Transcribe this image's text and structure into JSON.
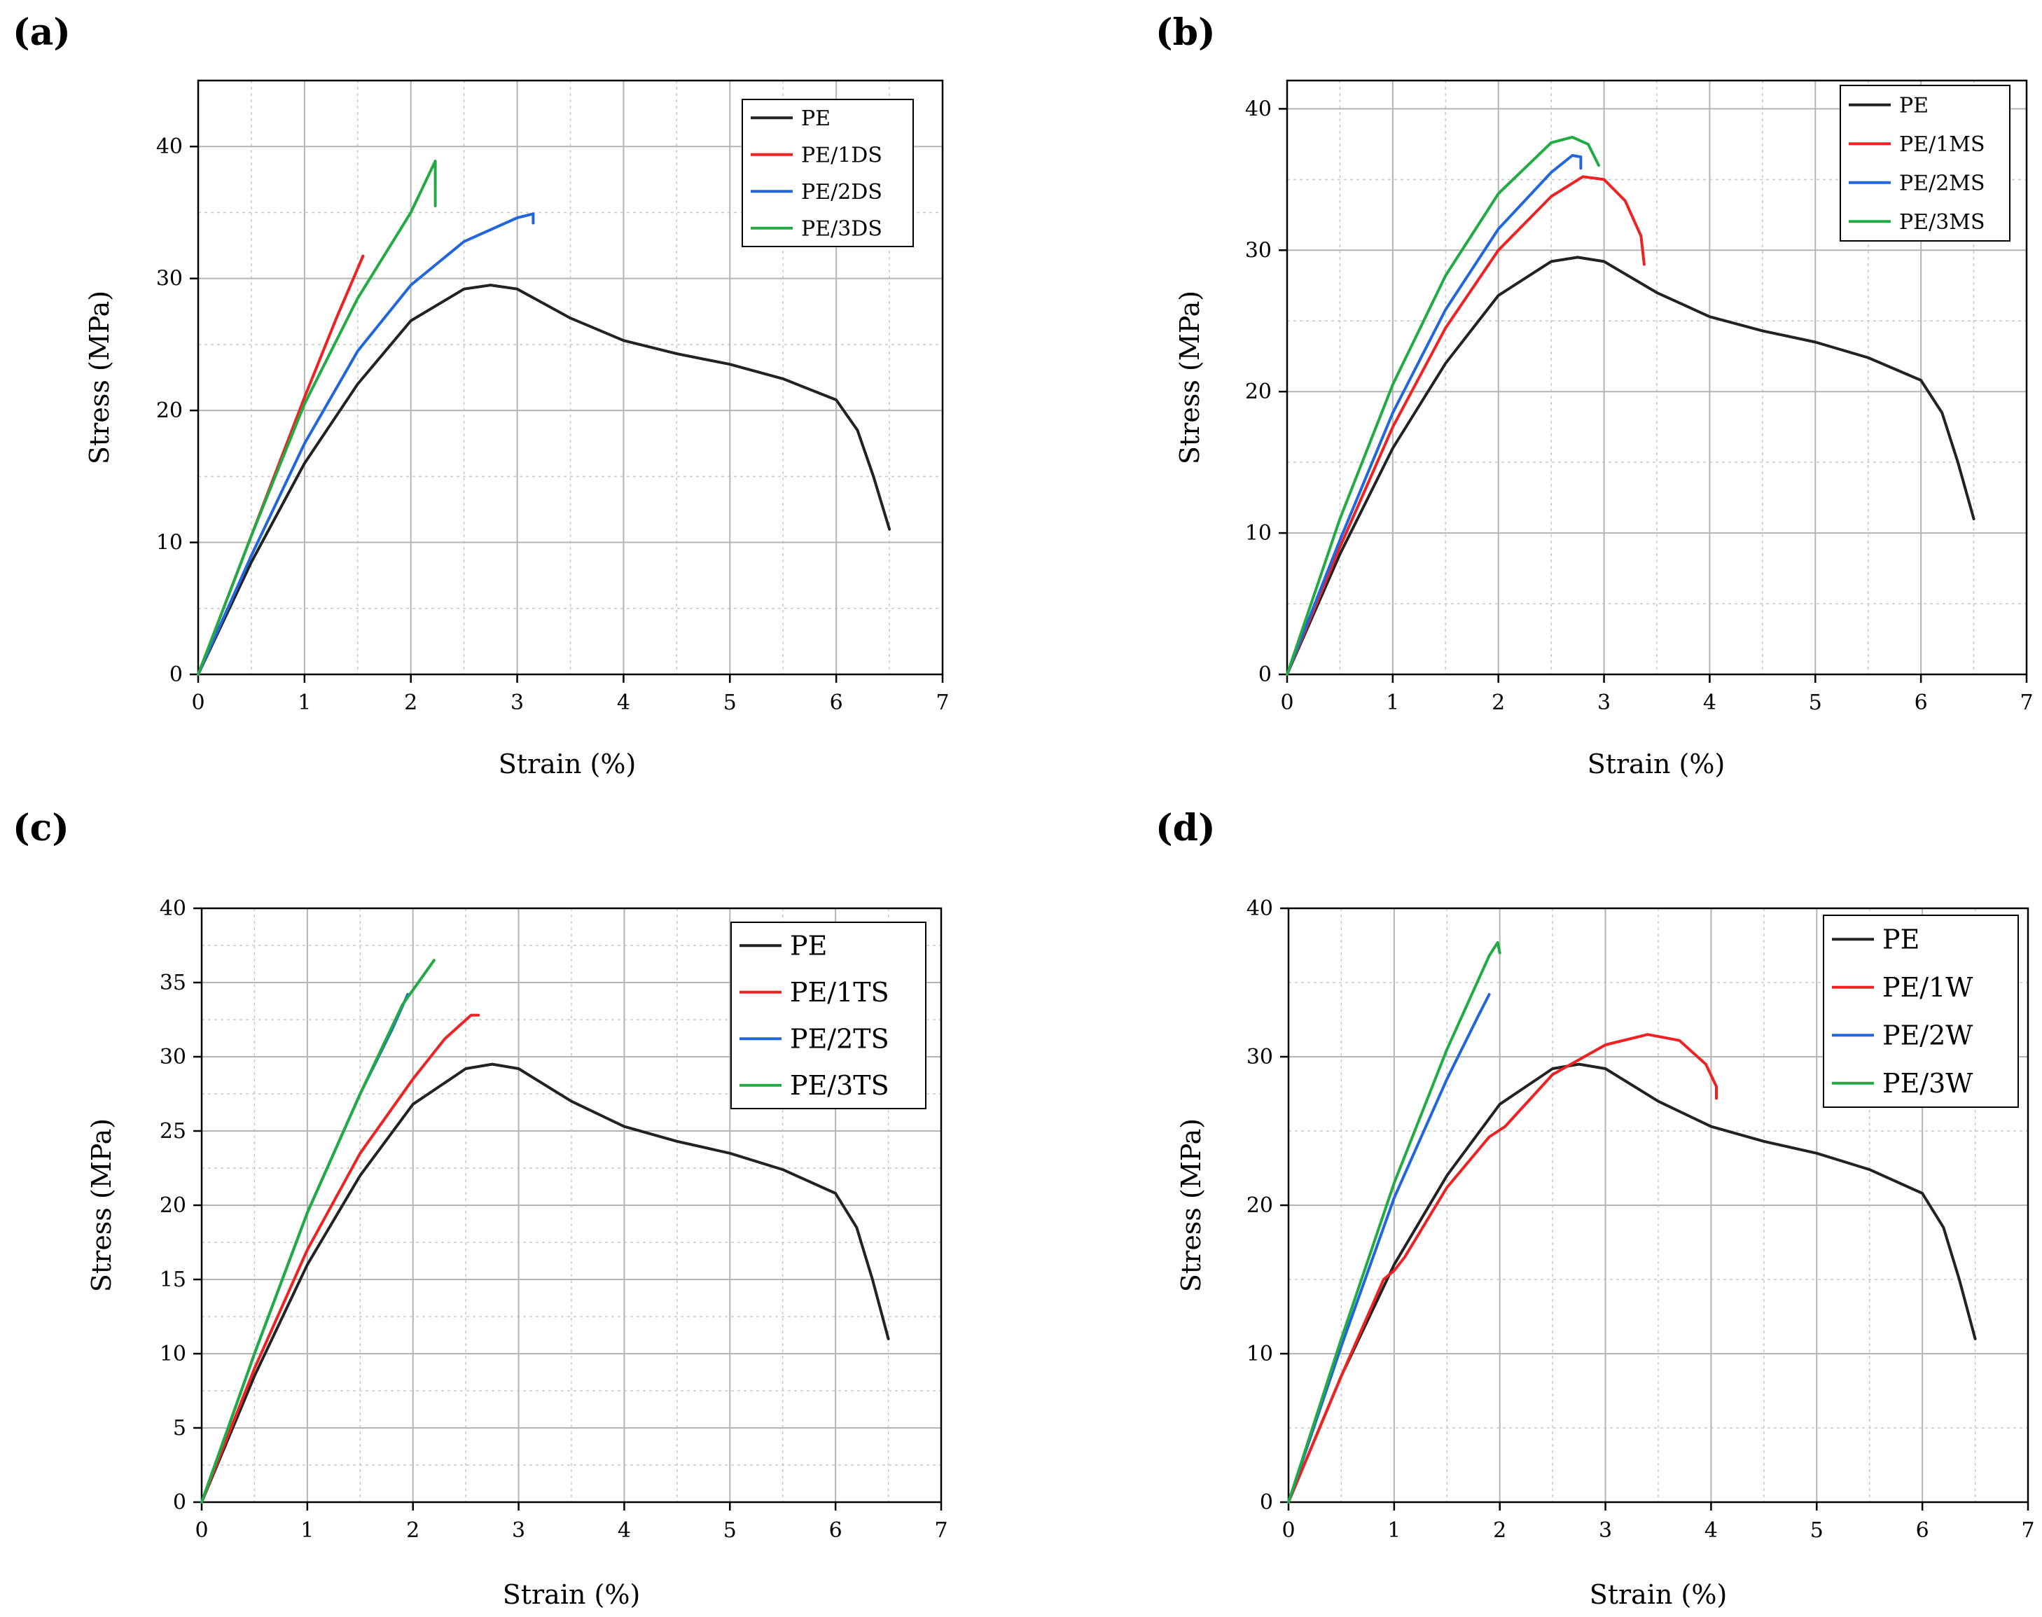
{
  "figure": {
    "panel_labels": [
      "(a)",
      "(b)",
      "(c)",
      "(d)"
    ]
  },
  "chart_data": [
    {
      "type": "line",
      "panel": "(a)",
      "xlabel": "Strain (%)",
      "ylabel": "Stress (MPa)",
      "xlim": [
        0,
        7
      ],
      "ylim": [
        0,
        45
      ],
      "xticks": [
        0,
        1,
        2,
        3,
        4,
        5,
        6,
        7
      ],
      "yticks": [
        0,
        10,
        20,
        30,
        40
      ],
      "grid": true,
      "legend": "top-right",
      "series": [
        {
          "name": "PE",
          "color": "#222222",
          "x": [
            0,
            0.5,
            1.0,
            1.5,
            2.0,
            2.5,
            2.75,
            3.0,
            3.5,
            4.0,
            4.5,
            5.0,
            5.5,
            6.0,
            6.2,
            6.35,
            6.5
          ],
          "y": [
            0,
            8.5,
            16,
            22,
            26.8,
            29.2,
            29.5,
            29.2,
            27,
            25.3,
            24.3,
            23.5,
            22.4,
            20.8,
            18.5,
            15,
            11
          ]
        },
        {
          "name": "PE/1DS",
          "color": "#ee2222",
          "x": [
            0,
            0.5,
            1.0,
            1.3,
            1.55
          ],
          "y": [
            0,
            10.5,
            21,
            27,
            31.7
          ]
        },
        {
          "name": "PE/2DS",
          "color": "#2266dd",
          "x": [
            0,
            0.5,
            1.0,
            1.5,
            2.0,
            2.5,
            3.0,
            3.15,
            3.15
          ],
          "y": [
            0,
            9,
            17.5,
            24.5,
            29.5,
            32.8,
            34.6,
            34.9,
            34.2
          ]
        },
        {
          "name": "PE/3DS",
          "color": "#22aa44",
          "x": [
            0,
            0.5,
            1.0,
            1.5,
            2.0,
            2.23,
            2.23
          ],
          "y": [
            0,
            10.5,
            20.5,
            28.5,
            35,
            38.9,
            35.5
          ]
        }
      ]
    },
    {
      "type": "line",
      "panel": "(b)",
      "xlabel": "Strain (%)",
      "ylabel": "Stress (MPa)",
      "xlim": [
        0,
        7
      ],
      "ylim": [
        0,
        42
      ],
      "xticks": [
        0,
        1,
        2,
        3,
        4,
        5,
        6,
        7
      ],
      "yticks": [
        0,
        10,
        20,
        30,
        40
      ],
      "grid": true,
      "legend": "top-right",
      "series": [
        {
          "name": "PE",
          "color": "#222222",
          "x": [
            0,
            0.5,
            1.0,
            1.5,
            2.0,
            2.5,
            2.75,
            3.0,
            3.5,
            4.0,
            4.5,
            5.0,
            5.5,
            6.0,
            6.2,
            6.35,
            6.5
          ],
          "y": [
            0,
            8.5,
            16,
            22,
            26.8,
            29.2,
            29.5,
            29.2,
            27,
            25.3,
            24.3,
            23.5,
            22.4,
            20.8,
            18.5,
            15,
            11
          ]
        },
        {
          "name": "PE/1MS",
          "color": "#ee2222",
          "x": [
            0,
            0.5,
            1.0,
            1.5,
            2.0,
            2.5,
            2.8,
            3.0,
            3.2,
            3.35,
            3.38
          ],
          "y": [
            0,
            9,
            17.5,
            24.5,
            30,
            33.8,
            35.2,
            35,
            33.5,
            31,
            29
          ]
        },
        {
          "name": "PE/2MS",
          "color": "#2266dd",
          "x": [
            0,
            0.5,
            1.0,
            1.5,
            2.0,
            2.5,
            2.7,
            2.78,
            2.78
          ],
          "y": [
            0,
            9.5,
            18.5,
            25.8,
            31.5,
            35.5,
            36.7,
            36.6,
            35.8
          ]
        },
        {
          "name": "PE/3MS",
          "color": "#22aa44",
          "x": [
            0,
            0.5,
            1.0,
            1.5,
            2.0,
            2.5,
            2.7,
            2.85,
            2.95
          ],
          "y": [
            0,
            11,
            20.5,
            28.2,
            34,
            37.6,
            38,
            37.5,
            36
          ]
        }
      ]
    },
    {
      "type": "line",
      "panel": "(c)",
      "xlabel": "Strain (%)",
      "ylabel": "Stress (MPa)",
      "xlim": [
        0,
        7
      ],
      "ylim": [
        0,
        40
      ],
      "xticks": [
        0,
        1,
        2,
        3,
        4,
        5,
        6,
        7
      ],
      "yticks": [
        0,
        5,
        10,
        15,
        20,
        25,
        30,
        35,
        40
      ],
      "grid": true,
      "legend": "top-right",
      "series": [
        {
          "name": "PE",
          "color": "#222222",
          "x": [
            0,
            0.5,
            1.0,
            1.5,
            2.0,
            2.5,
            2.75,
            3.0,
            3.5,
            4.0,
            4.5,
            5.0,
            5.5,
            6.0,
            6.2,
            6.35,
            6.5
          ],
          "y": [
            0,
            8.5,
            16,
            22,
            26.8,
            29.2,
            29.5,
            29.2,
            27,
            25.3,
            24.3,
            23.5,
            22.4,
            20.8,
            18.5,
            15,
            11
          ]
        },
        {
          "name": "PE/1TS",
          "color": "#ee2222",
          "x": [
            0,
            0.5,
            1.0,
            1.5,
            2.0,
            2.3,
            2.55,
            2.62
          ],
          "y": [
            0,
            9,
            17,
            23.5,
            28.5,
            31.2,
            32.8,
            32.8
          ]
        },
        {
          "name": "PE/2TS",
          "color": "#2266dd",
          "x": [
            0,
            0.5,
            1.0,
            1.5,
            1.8,
            1.95
          ],
          "y": [
            0,
            10,
            19.5,
            27.5,
            31.8,
            34.2
          ]
        },
        {
          "name": "PE/3TS",
          "color": "#22aa44",
          "x": [
            0,
            0.5,
            1.0,
            1.5,
            1.9,
            2.2
          ],
          "y": [
            0,
            10,
            19.5,
            27.5,
            33.5,
            36.5
          ]
        }
      ]
    },
    {
      "type": "line",
      "panel": "(d)",
      "xlabel": "Strain (%)",
      "ylabel": "Stress (MPa)",
      "xlim": [
        0,
        7
      ],
      "ylim": [
        0,
        40
      ],
      "xticks": [
        0,
        1,
        2,
        3,
        4,
        5,
        6,
        7
      ],
      "yticks": [
        0,
        10,
        20,
        30,
        40
      ],
      "grid": true,
      "legend": "top-right",
      "series": [
        {
          "name": "PE",
          "color": "#222222",
          "x": [
            0,
            0.5,
            1.0,
            1.5,
            2.0,
            2.5,
            2.75,
            3.0,
            3.5,
            4.0,
            4.5,
            5.0,
            5.5,
            6.0,
            6.2,
            6.35,
            6.5
          ],
          "y": [
            0,
            8.5,
            16,
            22,
            26.8,
            29.2,
            29.5,
            29.2,
            27,
            25.3,
            24.3,
            23.5,
            22.4,
            20.8,
            18.5,
            15,
            11
          ]
        },
        {
          "name": "PE/1W",
          "color": "#ee2222",
          "x": [
            0,
            0.5,
            0.9,
            1.0,
            1.1,
            1.5,
            1.9,
            2.05,
            2.5,
            3.0,
            3.4,
            3.7,
            3.95,
            4.05,
            4.05
          ],
          "y": [
            0,
            8.5,
            15,
            15.6,
            16.5,
            21.2,
            24.6,
            25.3,
            28.8,
            30.8,
            31.5,
            31.1,
            29.5,
            28,
            27.2
          ]
        },
        {
          "name": "PE/2W",
          "color": "#2266dd",
          "x": [
            0,
            0.5,
            1.0,
            1.5,
            1.8,
            1.9
          ],
          "y": [
            0,
            10.5,
            20.5,
            28.5,
            32.8,
            34.2
          ]
        },
        {
          "name": "PE/3W",
          "color": "#22aa44",
          "x": [
            0,
            0.5,
            1.0,
            1.5,
            1.9,
            1.98,
            2.0
          ],
          "y": [
            0,
            11,
            21.5,
            30.5,
            36.8,
            37.7,
            37
          ]
        }
      ]
    }
  ]
}
